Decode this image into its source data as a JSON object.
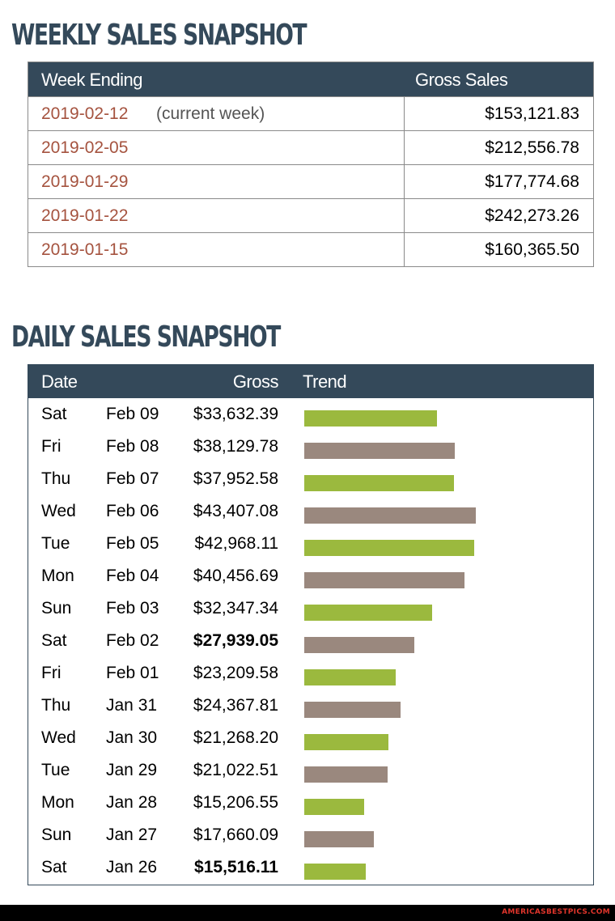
{
  "weekly": {
    "title": "WEEKLY SALES SNAPSHOT",
    "headers": {
      "week": "Week Ending",
      "sales": "Gross Sales"
    },
    "rows": [
      {
        "date": "2019-02-12",
        "note": "(current week)",
        "amount": "$153,121.83"
      },
      {
        "date": "2019-02-05",
        "note": "",
        "amount": "$212,556.78"
      },
      {
        "date": "2019-01-29",
        "note": "",
        "amount": "$177,774.68"
      },
      {
        "date": "2019-01-22",
        "note": "",
        "amount": "$242,273.26"
      },
      {
        "date": "2019-01-15",
        "note": "",
        "amount": "$160,365.50"
      }
    ]
  },
  "daily": {
    "title": "DAILY SALES SNAPSHOT",
    "headers": {
      "date": "Date",
      "gross": "Gross",
      "trend": "Trend"
    },
    "colors": {
      "green": "#9bb93e",
      "taupe": "#9a887e"
    },
    "rows": [
      {
        "day": "Sat",
        "date": "Feb 09",
        "gross": "$33,632.39",
        "value": 33632.39,
        "bold": false,
        "color": "green"
      },
      {
        "day": "Fri",
        "date": "Feb 08",
        "gross": "$38,129.78",
        "value": 38129.78,
        "bold": false,
        "color": "taupe"
      },
      {
        "day": "Thu",
        "date": "Feb 07",
        "gross": "$37,952.58",
        "value": 37952.58,
        "bold": false,
        "color": "green"
      },
      {
        "day": "Wed",
        "date": "Feb 06",
        "gross": "$43,407.08",
        "value": 43407.08,
        "bold": false,
        "color": "taupe"
      },
      {
        "day": "Tue",
        "date": "Feb 05",
        "gross": "$42,968.11",
        "value": 42968.11,
        "bold": false,
        "color": "green"
      },
      {
        "day": "Mon",
        "date": "Feb 04",
        "gross": "$40,456.69",
        "value": 40456.69,
        "bold": false,
        "color": "taupe"
      },
      {
        "day": "Sun",
        "date": "Feb 03",
        "gross": "$32,347.34",
        "value": 32347.34,
        "bold": false,
        "color": "green"
      },
      {
        "day": "Sat",
        "date": "Feb 02",
        "gross": "$27,939.05",
        "value": 27939.05,
        "bold": true,
        "color": "taupe"
      },
      {
        "day": "Fri",
        "date": "Feb 01",
        "gross": "$23,209.58",
        "value": 23209.58,
        "bold": false,
        "color": "green"
      },
      {
        "day": "Thu",
        "date": "Jan 31",
        "gross": "$24,367.81",
        "value": 24367.81,
        "bold": false,
        "color": "taupe"
      },
      {
        "day": "Wed",
        "date": "Jan 30",
        "gross": "$21,268.20",
        "value": 21268.2,
        "bold": false,
        "color": "green"
      },
      {
        "day": "Tue",
        "date": "Jan 29",
        "gross": "$21,022.51",
        "value": 21022.51,
        "bold": false,
        "color": "taupe"
      },
      {
        "day": "Mon",
        "date": "Jan 28",
        "gross": "$15,206.55",
        "value": 15206.55,
        "bold": false,
        "color": "green"
      },
      {
        "day": "Sun",
        "date": "Jan 27",
        "gross": "$17,660.09",
        "value": 17660.09,
        "bold": false,
        "color": "taupe"
      },
      {
        "day": "Sat",
        "date": "Jan 26",
        "gross": "$15,516.11",
        "value": 15516.11,
        "bold": true,
        "color": "green"
      }
    ]
  },
  "footer": {
    "watermark": "AMERICASBESTPICS.COM"
  }
}
